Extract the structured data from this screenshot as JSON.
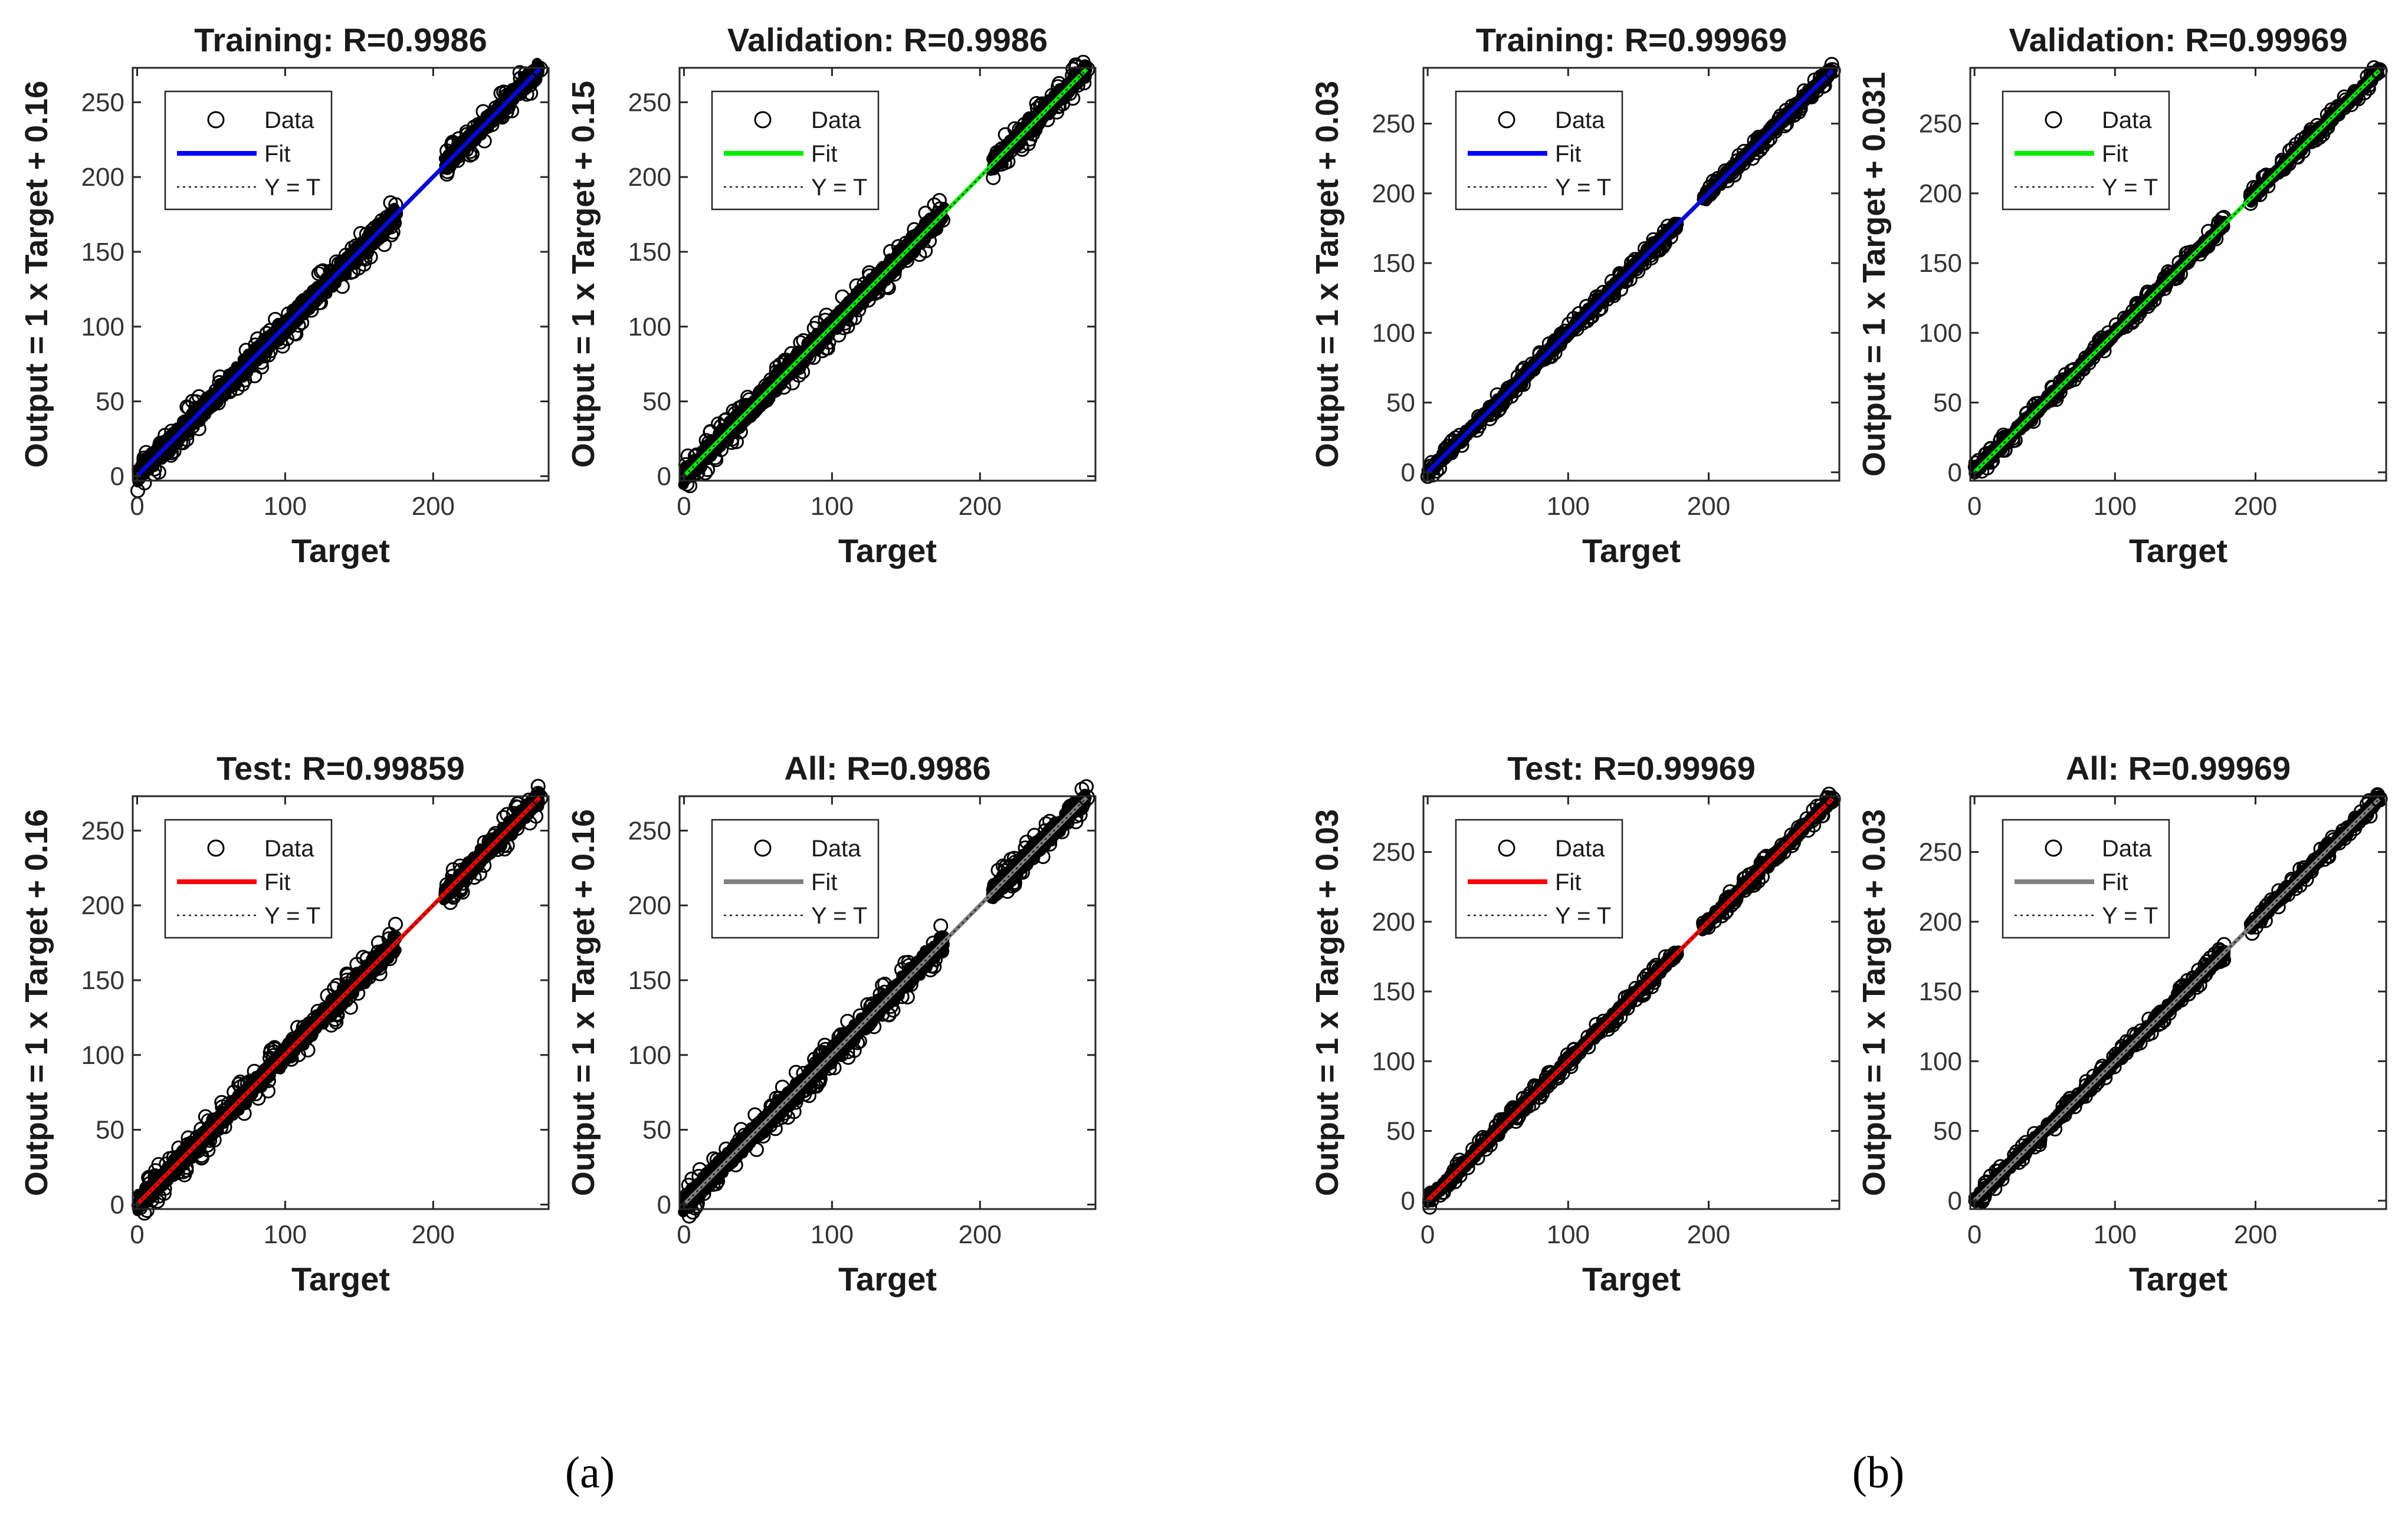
{
  "panel_labels": {
    "a": "(a)",
    "b": "(b)"
  },
  "legend": {
    "data": "Data",
    "fit": "Fit",
    "yt": "Y = T"
  },
  "chart_data": [
    {
      "type": "scatter",
      "panel": "a",
      "title": "Training: R=0.9986",
      "xlabel": "Target",
      "ylabel": "Output = 1 x Target + 0.16",
      "xlim": [
        -3,
        278
      ],
      "ylim": [
        -3,
        273
      ],
      "xticks": [
        0,
        100,
        200
      ],
      "yticks": [
        0,
        50,
        100,
        150,
        200,
        250
      ],
      "fit": {
        "slope": 1,
        "intercept": 0.16
      },
      "fit_color": "#0000ff",
      "r": 0.9986,
      "target_max": 272,
      "clusters": [
        {
          "from": 0,
          "to": 175,
          "spread": 8
        },
        {
          "from": 208,
          "to": 272,
          "spread": 7
        }
      ]
    },
    {
      "type": "scatter",
      "panel": "a",
      "title": "Validation: R=0.9986",
      "xlabel": "Target",
      "ylabel": "Output = 1 x Target + 0.15",
      "xlim": [
        -3,
        278
      ],
      "ylim": [
        -3,
        273
      ],
      "xticks": [
        0,
        100,
        200
      ],
      "yticks": [
        0,
        50,
        100,
        150,
        200,
        250
      ],
      "fit": {
        "slope": 1,
        "intercept": 0.15
      },
      "fit_color": "#00ee00",
      "r": 0.9986,
      "target_max": 272,
      "clusters": [
        {
          "from": 0,
          "to": 175,
          "spread": 8
        },
        {
          "from": 208,
          "to": 272,
          "spread": 7
        }
      ]
    },
    {
      "type": "scatter",
      "panel": "b",
      "title": "Training: R=0.99969",
      "xlabel": "Target",
      "ylabel": "Output = 1 x Target + 0.03",
      "xlim": [
        -3,
        293
      ],
      "ylim": [
        -6,
        290
      ],
      "xticks": [
        0,
        100,
        200
      ],
      "yticks": [
        0,
        50,
        100,
        150,
        200,
        250
      ],
      "fit": {
        "slope": 1,
        "intercept": 0.03
      },
      "fit_color": "#0000ff",
      "r": 0.99969,
      "target_max": 288,
      "clusters": [
        {
          "from": 0,
          "to": 178,
          "spread": 4
        },
        {
          "from": 196,
          "to": 288,
          "spread": 4
        }
      ]
    },
    {
      "type": "scatter",
      "panel": "b",
      "title": "Validation: R=0.99969",
      "xlabel": "Target",
      "ylabel": "Output = 1 x Target + 0.031",
      "xlim": [
        -3,
        293
      ],
      "ylim": [
        -6,
        290
      ],
      "xticks": [
        0,
        100,
        200
      ],
      "yticks": [
        0,
        50,
        100,
        150,
        200,
        250
      ],
      "fit": {
        "slope": 1,
        "intercept": 0.031
      },
      "fit_color": "#00ee00",
      "r": 0.99969,
      "target_max": 288,
      "clusters": [
        {
          "from": 0,
          "to": 178,
          "spread": 4
        },
        {
          "from": 196,
          "to": 288,
          "spread": 4
        }
      ]
    },
    {
      "type": "scatter",
      "panel": "a",
      "title": "Test: R=0.99859",
      "xlabel": "Target",
      "ylabel": "Output = 1 x Target + 0.16",
      "xlim": [
        -3,
        278
      ],
      "ylim": [
        -3,
        273
      ],
      "xticks": [
        0,
        100,
        200
      ],
      "yticks": [
        0,
        50,
        100,
        150,
        200,
        250
      ],
      "fit": {
        "slope": 1,
        "intercept": 0.16
      },
      "fit_color": "#ff0000",
      "r": 0.99859,
      "target_max": 272,
      "clusters": [
        {
          "from": 0,
          "to": 175,
          "spread": 8
        },
        {
          "from": 208,
          "to": 272,
          "spread": 7
        }
      ]
    },
    {
      "type": "scatter",
      "panel": "a",
      "title": "All: R=0.9986",
      "xlabel": "Target",
      "ylabel": "Output = 1 x Target + 0.16",
      "xlim": [
        -3,
        278
      ],
      "ylim": [
        -3,
        273
      ],
      "xticks": [
        0,
        100,
        200
      ],
      "yticks": [
        0,
        50,
        100,
        150,
        200,
        250
      ],
      "fit": {
        "slope": 1,
        "intercept": 0.16
      },
      "fit_color": "#808080",
      "r": 0.9986,
      "target_max": 272,
      "clusters": [
        {
          "from": 0,
          "to": 175,
          "spread": 8
        },
        {
          "from": 208,
          "to": 272,
          "spread": 7
        }
      ]
    },
    {
      "type": "scatter",
      "panel": "b",
      "title": "Test: R=0.99969",
      "xlabel": "Target",
      "ylabel": "Output = 1 x Target + 0.03",
      "xlim": [
        -3,
        293
      ],
      "ylim": [
        -6,
        290
      ],
      "xticks": [
        0,
        100,
        200
      ],
      "yticks": [
        0,
        50,
        100,
        150,
        200,
        250
      ],
      "fit": {
        "slope": 1,
        "intercept": 0.03
      },
      "fit_color": "#ff0000",
      "r": 0.99969,
      "target_max": 288,
      "clusters": [
        {
          "from": 0,
          "to": 178,
          "spread": 4
        },
        {
          "from": 196,
          "to": 288,
          "spread": 4
        }
      ]
    },
    {
      "type": "scatter",
      "panel": "b",
      "title": "All: R=0.99969",
      "xlabel": "Target",
      "ylabel": "Output = 1 x Target + 0.03",
      "xlim": [
        -3,
        293
      ],
      "ylim": [
        -6,
        290
      ],
      "xticks": [
        0,
        100,
        200
      ],
      "yticks": [
        0,
        50,
        100,
        150,
        200,
        250
      ],
      "fit": {
        "slope": 1,
        "intercept": 0.03
      },
      "fit_color": "#808080",
      "r": 0.99969,
      "target_max": 288,
      "clusters": [
        {
          "from": 0,
          "to": 178,
          "spread": 4
        },
        {
          "from": 196,
          "to": 288,
          "spread": 4
        }
      ]
    }
  ]
}
